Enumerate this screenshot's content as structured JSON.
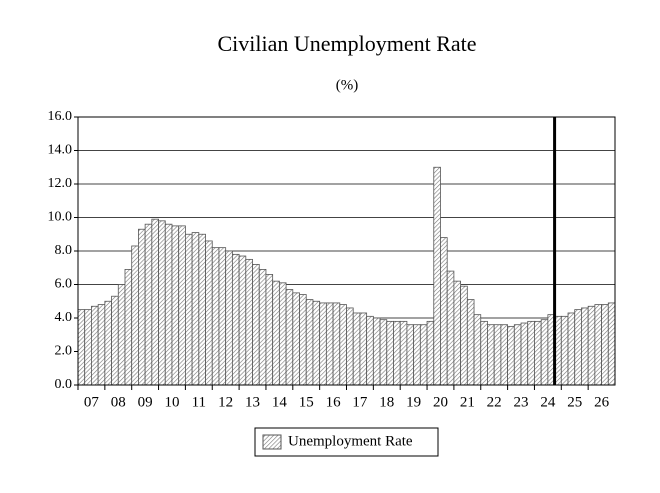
{
  "chart_data": {
    "type": "bar",
    "title": "Civilian Unemployment Rate",
    "subtitle": "(%)",
    "categories": [
      "07",
      null,
      null,
      null,
      "08",
      null,
      null,
      null,
      "09",
      null,
      null,
      null,
      "10",
      null,
      null,
      null,
      "11",
      null,
      null,
      null,
      "12",
      null,
      null,
      null,
      "13",
      null,
      null,
      null,
      "14",
      null,
      null,
      null,
      "15",
      null,
      null,
      null,
      "16",
      null,
      null,
      null,
      "17",
      null,
      null,
      null,
      "18",
      null,
      null,
      null,
      "19",
      null,
      null,
      null,
      "20",
      null,
      null,
      null,
      "21",
      null,
      null,
      null,
      "22",
      null,
      null,
      null,
      "23",
      null,
      null,
      null,
      "24",
      null,
      null,
      null,
      "25",
      null,
      null,
      null,
      "26",
      null,
      null,
      null
    ],
    "series": [
      {
        "name": "Unemployment Rate",
        "color": "#999999",
        "values": [
          4.5,
          4.5,
          4.7,
          4.8,
          5.0,
          5.3,
          6.0,
          6.9,
          8.3,
          9.3,
          9.6,
          9.9,
          9.8,
          9.6,
          9.5,
          9.5,
          9.0,
          9.1,
          9.0,
          8.6,
          8.2,
          8.2,
          8.0,
          7.8,
          7.7,
          7.5,
          7.2,
          6.9,
          6.6,
          6.2,
          6.1,
          5.7,
          5.5,
          5.4,
          5.1,
          5.0,
          4.9,
          4.9,
          4.9,
          4.8,
          4.6,
          4.3,
          4.3,
          4.1,
          4.0,
          3.9,
          3.8,
          3.8,
          3.8,
          3.6,
          3.6,
          3.6,
          3.8,
          13.0,
          8.8,
          6.8,
          6.2,
          5.9,
          5.1,
          4.2,
          3.8,
          3.6,
          3.6,
          3.6,
          3.5,
          3.6,
          3.7,
          3.8,
          3.8,
          3.9,
          4.2,
          4.1,
          4.1,
          4.3,
          4.5,
          4.6,
          4.7,
          4.8,
          4.8,
          4.9
        ]
      }
    ],
    "ylim": [
      0,
      16
    ],
    "yticks": [
      {
        "value": 0,
        "label": "0.0"
      },
      {
        "value": 2,
        "label": "2.0"
      },
      {
        "value": 4,
        "label": "4.0"
      },
      {
        "value": 6,
        "label": "6.0"
      },
      {
        "value": 8,
        "label": "8.0"
      },
      {
        "value": 10,
        "label": "10.0"
      },
      {
        "value": 12,
        "label": "12.0"
      },
      {
        "value": 14,
        "label": "14.0"
      },
      {
        "value": 16,
        "label": "16.0"
      }
    ],
    "grid": true,
    "divider_index": 71,
    "legend": "bottom"
  }
}
